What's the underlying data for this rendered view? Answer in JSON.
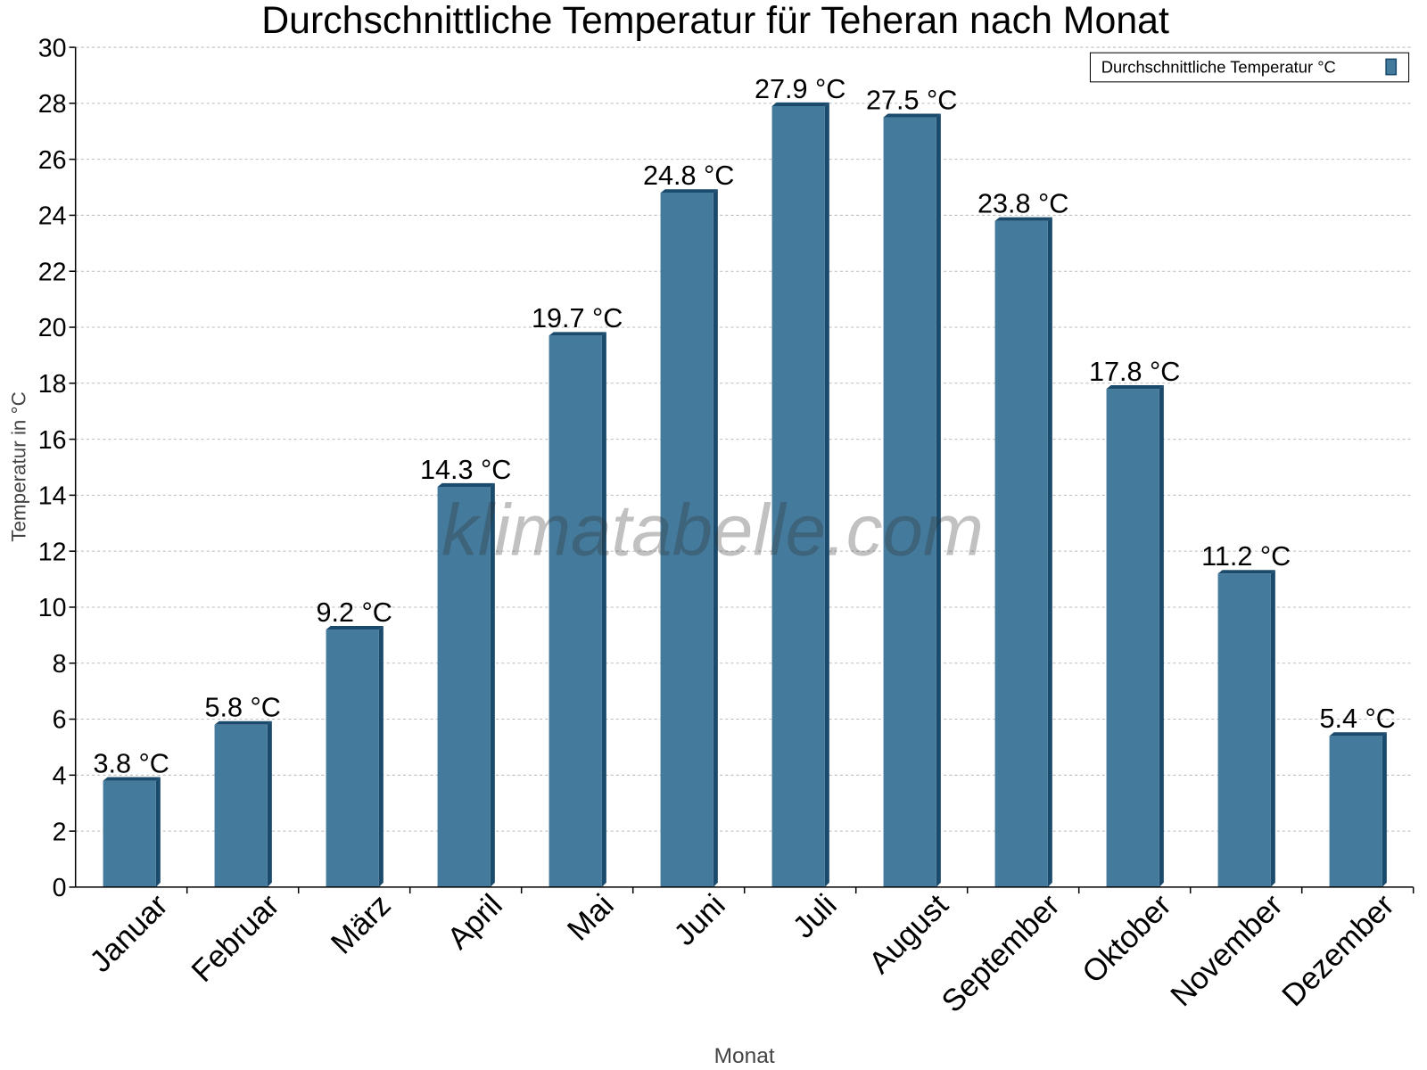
{
  "chart_data": {
    "type": "bar",
    "title": "Durchschnittliche Temperatur für Teheran nach Monat",
    "xlabel": "Monat",
    "ylabel": "Temperatur in °C",
    "ylim": [
      0,
      30
    ],
    "yticks": [
      0,
      2,
      4,
      6,
      8,
      10,
      12,
      14,
      16,
      18,
      20,
      22,
      24,
      26,
      28,
      30
    ],
    "grid": true,
    "legend_position": "top-right",
    "categories": [
      "Januar",
      "Februar",
      "März",
      "April",
      "Mai",
      "Juni",
      "Juli",
      "August",
      "September",
      "Oktober",
      "November",
      "Dezember"
    ],
    "series": [
      {
        "name": "Durchschnittliche Temperatur °C",
        "values": [
          3.8,
          5.8,
          9.2,
          14.3,
          19.7,
          24.8,
          27.9,
          27.5,
          23.8,
          17.8,
          11.2,
          5.4
        ],
        "labels": [
          "3.8 °C",
          "5.8 °C",
          "9.2 °C",
          "14.3 °C",
          "19.7 °C",
          "24.8 °C",
          "27.9 °C",
          "27.5 °C",
          "23.8 °C",
          "17.8 °C",
          "11.2 °C",
          "5.4 °C"
        ],
        "color": "#447a9c",
        "side_color": "#1b4b6c"
      }
    ],
    "watermark": "klimatabelle.com"
  }
}
